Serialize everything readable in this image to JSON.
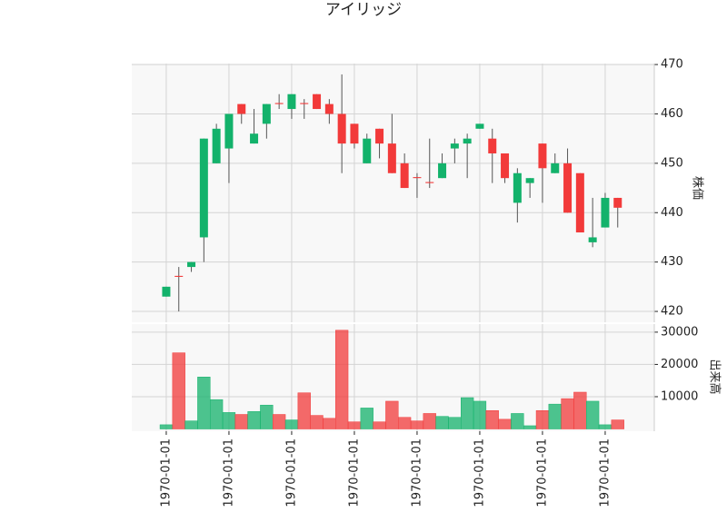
{
  "chart_data": {
    "type": "candlestick",
    "title": "アイリッジ",
    "categories": [
      "1970-01-01",
      null,
      null,
      null,
      null,
      "1970-01-01",
      null,
      null,
      null,
      null,
      "1970-01-01",
      null,
      null,
      null,
      null,
      "1970-01-01",
      null,
      null,
      null,
      null,
      "1970-01-01",
      null,
      null,
      null,
      null,
      "1970-01-01",
      null,
      null,
      null,
      null,
      "1970-01-01",
      null,
      null,
      null,
      null,
      "1970-01-01",
      null
    ],
    "open": [
      423,
      427.2,
      429,
      435,
      450,
      453,
      462,
      454,
      458,
      462.2,
      461,
      462.2,
      464,
      462,
      460,
      458,
      450,
      457,
      454,
      450,
      447.2,
      446.2,
      447,
      453,
      454,
      457,
      455,
      452,
      442,
      446,
      454,
      448,
      450,
      448,
      434,
      437,
      443
    ],
    "high": [
      425,
      429,
      430,
      455,
      458,
      460,
      462,
      461,
      462,
      464,
      464,
      463,
      464,
      463,
      468,
      458,
      456,
      457,
      460,
      452,
      448,
      455,
      452,
      455,
      456,
      458,
      457,
      452,
      449,
      447,
      454,
      452,
      453,
      448,
      443,
      444,
      443
    ],
    "low": [
      423,
      420,
      428,
      430,
      450,
      446,
      458,
      454,
      455,
      461,
      459,
      459,
      461,
      458,
      448,
      453,
      450,
      451,
      448,
      445,
      443,
      445,
      447,
      450,
      447,
      457,
      446,
      446,
      438,
      443,
      442,
      448,
      440,
      436,
      433,
      437,
      437
    ],
    "close": [
      425,
      427,
      430,
      455,
      457,
      460,
      460,
      456,
      462,
      462,
      464,
      462,
      461,
      460,
      454,
      454,
      455,
      454,
      448,
      445,
      447,
      446,
      450,
      454,
      455,
      458,
      452,
      447,
      448,
      447,
      449,
      450,
      440,
      436,
      435,
      443,
      441
    ],
    "ylim": [
      417.8,
      470.2
    ],
    "yticks": [
      420,
      430,
      440,
      450,
      460,
      470
    ],
    "ylabel": "株価",
    "up_color": "#13b26b",
    "down_color": "#f23a3a",
    "grid": true,
    "volume": {
      "values": [
        1300,
        23600,
        2500,
        16100,
        9100,
        5100,
        4500,
        5400,
        7400,
        4500,
        2800,
        11200,
        4200,
        3300,
        30600,
        2200,
        6500,
        2200,
        8600,
        3600,
        2500,
        4800,
        3900,
        3600,
        9700,
        8600,
        5700,
        3000,
        4800,
        1000,
        5700,
        7700,
        9400,
        11400,
        8600,
        1300,
        2800
      ],
      "ylim": [
        -700,
        32500
      ],
      "yticks": [
        10000,
        20000,
        30000
      ],
      "ylabel": "出来高"
    }
  }
}
